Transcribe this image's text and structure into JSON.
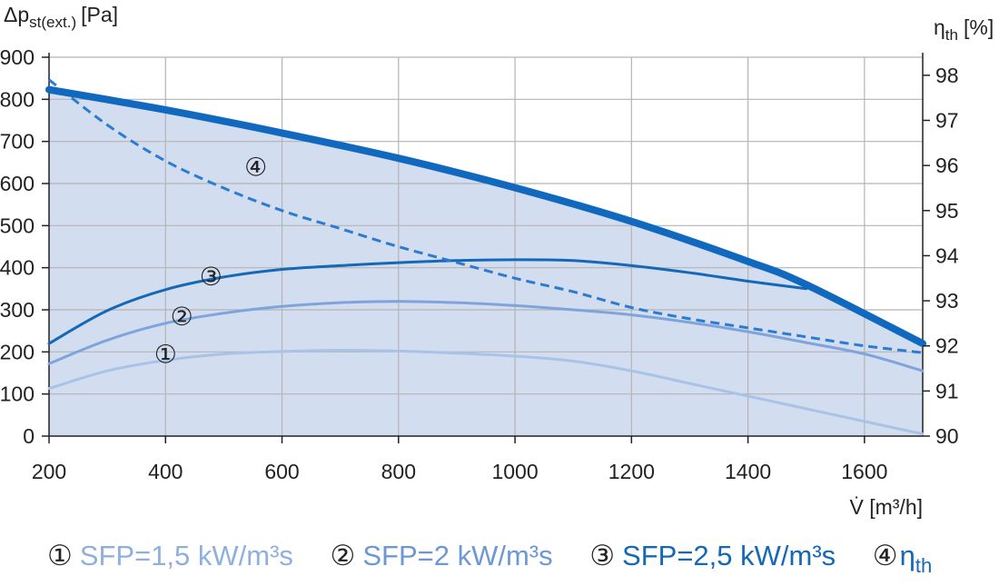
{
  "chart_data": {
    "type": "line",
    "y_axis_label": {
      "main": "Δp",
      "sub": "st(ext.)",
      "unit": "[Pa]"
    },
    "y2_axis_label": {
      "main": "η",
      "sub": "th",
      "unit": "[%]"
    },
    "x_axis_label": {
      "main": "V̇",
      "unit": "[m³/h]"
    },
    "xlim": [
      200,
      1700
    ],
    "ylim": [
      0,
      900
    ],
    "y2lim": [
      90,
      98.4
    ],
    "x_ticks": [
      200,
      400,
      600,
      800,
      1000,
      1200,
      1400,
      1600
    ],
    "x_tick_labels": [
      "200",
      "400",
      "600",
      "800",
      "1000",
      "1200",
      "1400",
      "1600"
    ],
    "y_ticks": [
      0,
      100,
      200,
      300,
      400,
      500,
      600,
      700,
      800,
      900
    ],
    "y_tick_labels": [
      "0",
      "100",
      "200",
      "300",
      "400",
      "500",
      "600",
      "700",
      "800",
      "900"
    ],
    "y2_ticks": [
      90,
      91,
      92,
      93,
      94,
      95,
      96,
      97,
      98
    ],
    "y2_tick_labels": [
      "90",
      "91",
      "92",
      "93",
      "94",
      "95",
      "96",
      "97",
      "98"
    ],
    "grid": true,
    "envelope": {
      "x": [
        200,
        400,
        600,
        800,
        1000,
        1200,
        1400,
        1500,
        1700
      ],
      "y": [
        823,
        775,
        720,
        660,
        590,
        510,
        415,
        360,
        220
      ]
    },
    "series": [
      {
        "marker": "①",
        "axis": "left",
        "color": "#a9c3e6",
        "width": 3,
        "x": [
          200,
          300,
          400,
          500,
          600,
          700,
          800,
          900,
          1000,
          1100,
          1200,
          1300,
          1400,
          1500,
          1600,
          1700
        ],
        "y": [
          113,
          155,
          180,
          195,
          201,
          204,
          202,
          197,
          190,
          178,
          155,
          125,
          95,
          65,
          35,
          5
        ],
        "label_at": [
          400,
          195
        ]
      },
      {
        "marker": "②",
        "axis": "left",
        "color": "#7fa4dc",
        "width": 3,
        "x": [
          200,
          300,
          400,
          500,
          600,
          700,
          800,
          900,
          1000,
          1100,
          1200,
          1300,
          1400,
          1500,
          1600,
          1700
        ],
        "y": [
          172,
          228,
          268,
          292,
          308,
          317,
          320,
          317,
          310,
          300,
          288,
          270,
          248,
          222,
          195,
          155
        ],
        "label_at": [
          428,
          285
        ]
      },
      {
        "marker": "③",
        "axis": "left",
        "color": "#1468b6",
        "width": 3,
        "x": [
          200,
          300,
          400,
          500,
          600,
          700,
          800,
          900,
          1000,
          1100,
          1200,
          1300,
          1400,
          1500
        ],
        "y": [
          220,
          298,
          348,
          378,
          396,
          405,
          412,
          417,
          419,
          417,
          405,
          388,
          368,
          350
        ],
        "label_at": [
          478,
          380
        ]
      },
      {
        "marker": "④",
        "axis": "right",
        "color": "#2b7cd0",
        "width": 3,
        "dashed": true,
        "x": [
          200,
          300,
          400,
          500,
          600,
          700,
          800,
          900,
          1000,
          1100,
          1200,
          1300,
          1400,
          1500,
          1600,
          1700
        ],
        "y": [
          97.9,
          96.9,
          96.1,
          95.5,
          95.0,
          94.6,
          94.2,
          93.85,
          93.5,
          93.2,
          92.85,
          92.6,
          92.4,
          92.2,
          92.0,
          91.85
        ],
        "label_at": [
          555,
          95.97
        ]
      }
    ]
  },
  "legend": [
    {
      "num": "①",
      "text": "SFP=1,5 kW/m³s",
      "color": "#8fb0de"
    },
    {
      "num": "②",
      "text": "SFP=2 kW/m³s",
      "color": "#6d98d6"
    },
    {
      "num": "③",
      "text": "SFP=2,5 kW/m³s",
      "color": "#1468b6"
    },
    {
      "num": "④",
      "text": "η",
      "sub": "th",
      "color": "#1468b6"
    }
  ],
  "colors": {
    "fill": "#d3ddf0",
    "envelope": "#1068bf",
    "grid": "#b4b4b4",
    "axis": "#222222"
  }
}
